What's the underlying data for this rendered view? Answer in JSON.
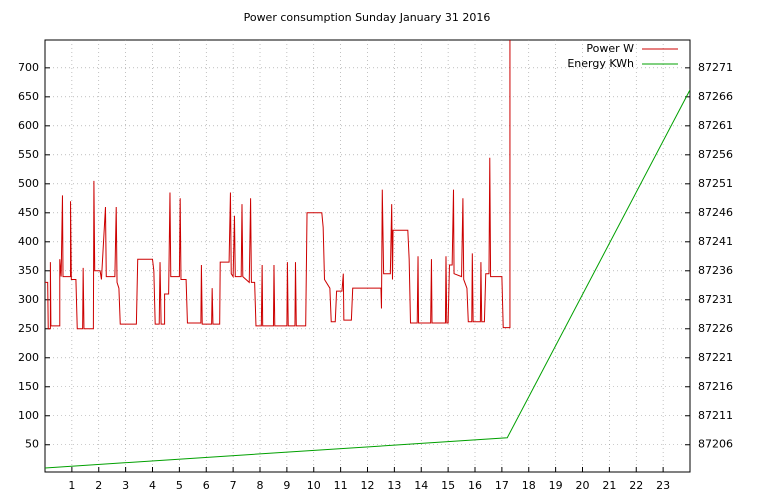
{
  "chart_data": {
    "type": "line",
    "title": "Power consumption Sunday January 31 2016",
    "xlim": [
      0,
      24
    ],
    "xticks": [
      1,
      2,
      3,
      4,
      5,
      6,
      7,
      8,
      9,
      10,
      11,
      12,
      13,
      14,
      15,
      16,
      17,
      18,
      19,
      20,
      21,
      22,
      23
    ],
    "ylim": [
      3,
      748
    ],
    "yticks": [
      50,
      100,
      150,
      200,
      250,
      300,
      350,
      400,
      450,
      500,
      550,
      600,
      650,
      700
    ],
    "y2lim": [
      87201.3,
      87275.8
    ],
    "y2ticks": [
      87206,
      87211,
      87216,
      87221,
      87226,
      87231,
      87236,
      87241,
      87246,
      87251,
      87256,
      87261,
      87266,
      87271
    ],
    "grid": true,
    "legend": "top-right",
    "series": [
      {
        "name": "Power W",
        "color": "#cc0000",
        "x": [
          0.0,
          0.1,
          0.12,
          0.2,
          0.2,
          0.22,
          0.55,
          0.55,
          0.6,
          0.65,
          0.67,
          0.95,
          0.95,
          0.98,
          1.15,
          1.2,
          1.4,
          1.42,
          1.45,
          1.8,
          1.82,
          1.85,
          2.05,
          2.1,
          2.25,
          2.28,
          2.6,
          2.65,
          2.68,
          2.75,
          2.8,
          3.4,
          3.45,
          4.0,
          4.05,
          4.1,
          4.25,
          4.28,
          4.32,
          4.45,
          4.45,
          4.6,
          4.65,
          4.68,
          5.0,
          5.03,
          5.06,
          5.25,
          5.3,
          5.8,
          5.82,
          5.85,
          6.2,
          6.22,
          6.25,
          6.5,
          6.52,
          6.85,
          6.9,
          6.93,
          7.0,
          7.05,
          7.08,
          7.3,
          7.33,
          7.36,
          7.6,
          7.65,
          7.68,
          7.8,
          7.85,
          8.05,
          8.08,
          8.1,
          8.5,
          8.52,
          8.55,
          9.0,
          9.02,
          9.05,
          9.3,
          9.32,
          9.35,
          9.7,
          9.75,
          10.3,
          10.35,
          10.4,
          10.6,
          10.65,
          10.8,
          10.85,
          11.05,
          11.1,
          11.12,
          11.4,
          11.45,
          12.5,
          12.52,
          12.55,
          12.6,
          12.85,
          12.9,
          12.93,
          12.95,
          13.5,
          13.55,
          13.6,
          13.85,
          13.88,
          13.9,
          14.35,
          14.38,
          14.4,
          14.9,
          14.92,
          14.95,
          15.0,
          15.05,
          15.15,
          15.2,
          15.22,
          15.5,
          15.55,
          15.58,
          15.7,
          15.75,
          15.88,
          15.9,
          15.93,
          16.2,
          16.22,
          16.25,
          16.35,
          16.4,
          16.52,
          16.55,
          16.58,
          17.0,
          17.05,
          17.3,
          17.3
        ],
        "values": [
          330,
          330,
          250,
          250,
          365,
          255,
          255,
          370,
          340,
          480,
          340,
          340,
          470,
          335,
          335,
          250,
          250,
          355,
          250,
          250,
          505,
          350,
          350,
          335,
          460,
          340,
          340,
          460,
          330,
          320,
          258,
          258,
          370,
          370,
          350,
          258,
          258,
          365,
          258,
          258,
          310,
          310,
          485,
          340,
          340,
          475,
          335,
          335,
          260,
          260,
          360,
          258,
          258,
          320,
          258,
          258,
          365,
          365,
          485,
          345,
          340,
          445,
          340,
          340,
          465,
          340,
          330,
          475,
          330,
          330,
          255,
          255,
          360,
          255,
          255,
          360,
          255,
          255,
          365,
          255,
          255,
          365,
          255,
          255,
          450,
          450,
          425,
          335,
          320,
          262,
          262,
          315,
          315,
          345,
          265,
          265,
          320,
          320,
          285,
          490,
          345,
          345,
          465,
          335,
          420,
          420,
          370,
          260,
          260,
          375,
          260,
          260,
          370,
          260,
          260,
          375,
          260,
          260,
          360,
          360,
          490,
          345,
          340,
          475,
          335,
          320,
          262,
          262,
          380,
          262,
          262,
          365,
          262,
          262,
          345,
          345,
          545,
          340,
          340,
          252,
          252,
          748
        ]
      },
      {
        "name": "Energy KWh",
        "color": "#00a000",
        "axis": "y2",
        "x": [
          0,
          17.2,
          24
        ],
        "values": [
          87202.0,
          87207.2,
          87267.2
        ]
      }
    ]
  }
}
